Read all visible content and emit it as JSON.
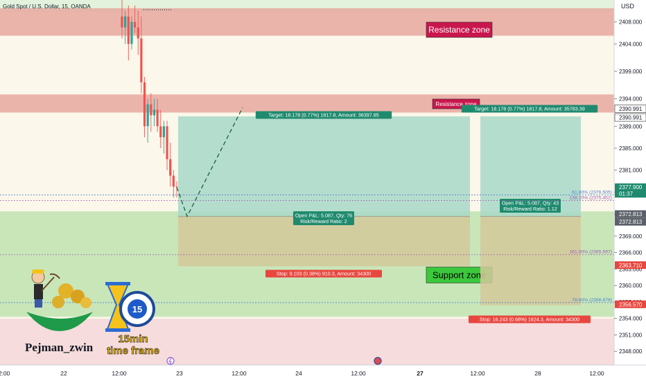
{
  "chart_data": {
    "type": "candlestick",
    "title": "Gold Spot / U.S. Dollar, 15, OANDA",
    "currency": "USD",
    "ylim": [
      2345.5,
      2412
    ],
    "y_ticks": [
      2348,
      2351,
      2354,
      2357,
      2360,
      2363,
      2366,
      2369,
      2373,
      2377,
      2381,
      2385,
      2389,
      2394,
      2399,
      2404,
      2408
    ],
    "y_tick_labels": [
      "2348.000",
      "2351.000",
      "2354.000",
      "2357.000",
      "2360.000",
      "2363.000",
      "2366.000",
      "2369.000",
      "2373.000",
      "2377.000",
      "2381.000",
      "2385.000",
      "2389.000",
      "2394.000",
      "2399.000",
      "2404.000",
      "2408.000"
    ],
    "x_tick_labels": [
      "2:00",
      "22",
      "12:00",
      "23",
      "12:00",
      "24",
      "12:00",
      "27",
      "12:00",
      "28",
      "12:00"
    ],
    "bold_x_tick": "27",
    "zones": [
      {
        "label": "Resistance zone",
        "from": 2405.5,
        "to": 2410.5,
        "fill": "#e8a8a0"
      },
      {
        "label": "Resistance zone",
        "from": 2391.5,
        "to": 2394.8,
        "fill": "#e8a8a0"
      },
      {
        "label": "Support zone",
        "from": 2354.3,
        "to": 2373.5,
        "fill": "#b8e0a8"
      }
    ],
    "price_labels": [
      {
        "text": "2390.991",
        "price": 2392.2,
        "style": "outline"
      },
      {
        "text": "2390.991",
        "price": 2390.6,
        "style": "outline"
      },
      {
        "text": "2377.900",
        "price": 2377.9,
        "style": "green"
      },
      {
        "text": "01:37",
        "price": 2376.7,
        "style": "green"
      },
      {
        "text": "2372.813",
        "price": 2373.0,
        "style": "gray"
      },
      {
        "text": "2372.813",
        "price": 2371.6,
        "style": "gray"
      },
      {
        "text": "2363.710",
        "price": 2363.7,
        "style": "red"
      },
      {
        "text": "2356.570",
        "price": 2356.57,
        "style": "red"
      }
    ],
    "fib_levels": [
      {
        "label": "61.80% (2376.505)",
        "price": 2376.505,
        "color": "#4a7fd4"
      },
      {
        "label": "138.20% (2375.452)",
        "price": 2375.452,
        "color": "#9b59b6"
      },
      {
        "label": "161.80% (2365.597)",
        "price": 2365.597,
        "color": "#9b59b6"
      },
      {
        "label": "78.60% (2356.878)",
        "price": 2356.878,
        "color": "#4a7fd4"
      }
    ],
    "positions": [
      {
        "entry": 2372.6,
        "target": 2390.8,
        "stop": 2363.5,
        "target_label": "Target: 18.178 (0.77%) 1817.8, Amount: 36397.85",
        "pnl_label": "Open P&L: 5.087, Qty: 76",
        "rr_label": "Risk/Reward Ratio: 2",
        "stop_label": "Stop: 9.103 (0.38%) 910.3, Amount: 34300"
      },
      {
        "entry": 2372.6,
        "target": 2390.8,
        "stop": 2356.4,
        "target_label": "Target: 18.178 (0.77%) 1817.8, Amount: 35783.39",
        "pnl_label": "Open P&L: 5.087, Qty: 43",
        "rr_label": "Risk/Reward Ratio: 1.12",
        "stop_label": "Stop: 16.243 (0.68%) 1624.3, Amount: 34300"
      }
    ],
    "candles": [
      [
        2409.0,
        2412.0,
        2405.0,
        2407.0
      ],
      [
        2407.0,
        2410.0,
        2404.0,
        2409.0
      ],
      [
        2409.0,
        2411.0,
        2401.0,
        2404.0
      ],
      [
        2404.0,
        2409.0,
        2403.0,
        2408.0
      ],
      [
        2408.0,
        2411.0,
        2406.0,
        2407.0
      ],
      [
        2407.0,
        2410.0,
        2402.0,
        2405.0
      ],
      [
        2405.0,
        2409.0,
        2395.0,
        2397.0
      ],
      [
        2397.0,
        2398.0,
        2387.0,
        2389.0
      ],
      [
        2389.0,
        2394.0,
        2386.0,
        2393.0
      ],
      [
        2393.0,
        2395.0,
        2388.0,
        2391.0
      ],
      [
        2391.0,
        2394.0,
        2389.0,
        2392.0
      ],
      [
        2392.0,
        2394.0,
        2388.0,
        2389.0
      ],
      [
        2389.0,
        2392.0,
        2385.0,
        2387.0
      ],
      [
        2387.0,
        2390.0,
        2384.0,
        2389.0
      ],
      [
        2389.0,
        2390.0,
        2381.0,
        2383.0
      ],
      [
        2383.0,
        2386.0,
        2378.0,
        2380.0
      ],
      [
        2380.0,
        2381.0,
        2376.0,
        2378.0
      ],
      [
        2378.0,
        2379.0,
        2376.0,
        2377.9
      ]
    ],
    "grid": false,
    "watermark_texts": [
      "Pejman_zwin",
      "15min",
      "time frame"
    ],
    "timer_number": "15"
  },
  "colors": {
    "up": "#26a69a",
    "down": "#ef5350",
    "resistance_fill": "#e8a8a0",
    "support_fill": "#b8e0a8",
    "profit_fill": "#a8d8c8",
    "loss_fill": "#d4c89a",
    "label_green": "#1f8a6e",
    "label_red": "#e8473f",
    "label_gray": "#5b6069"
  }
}
